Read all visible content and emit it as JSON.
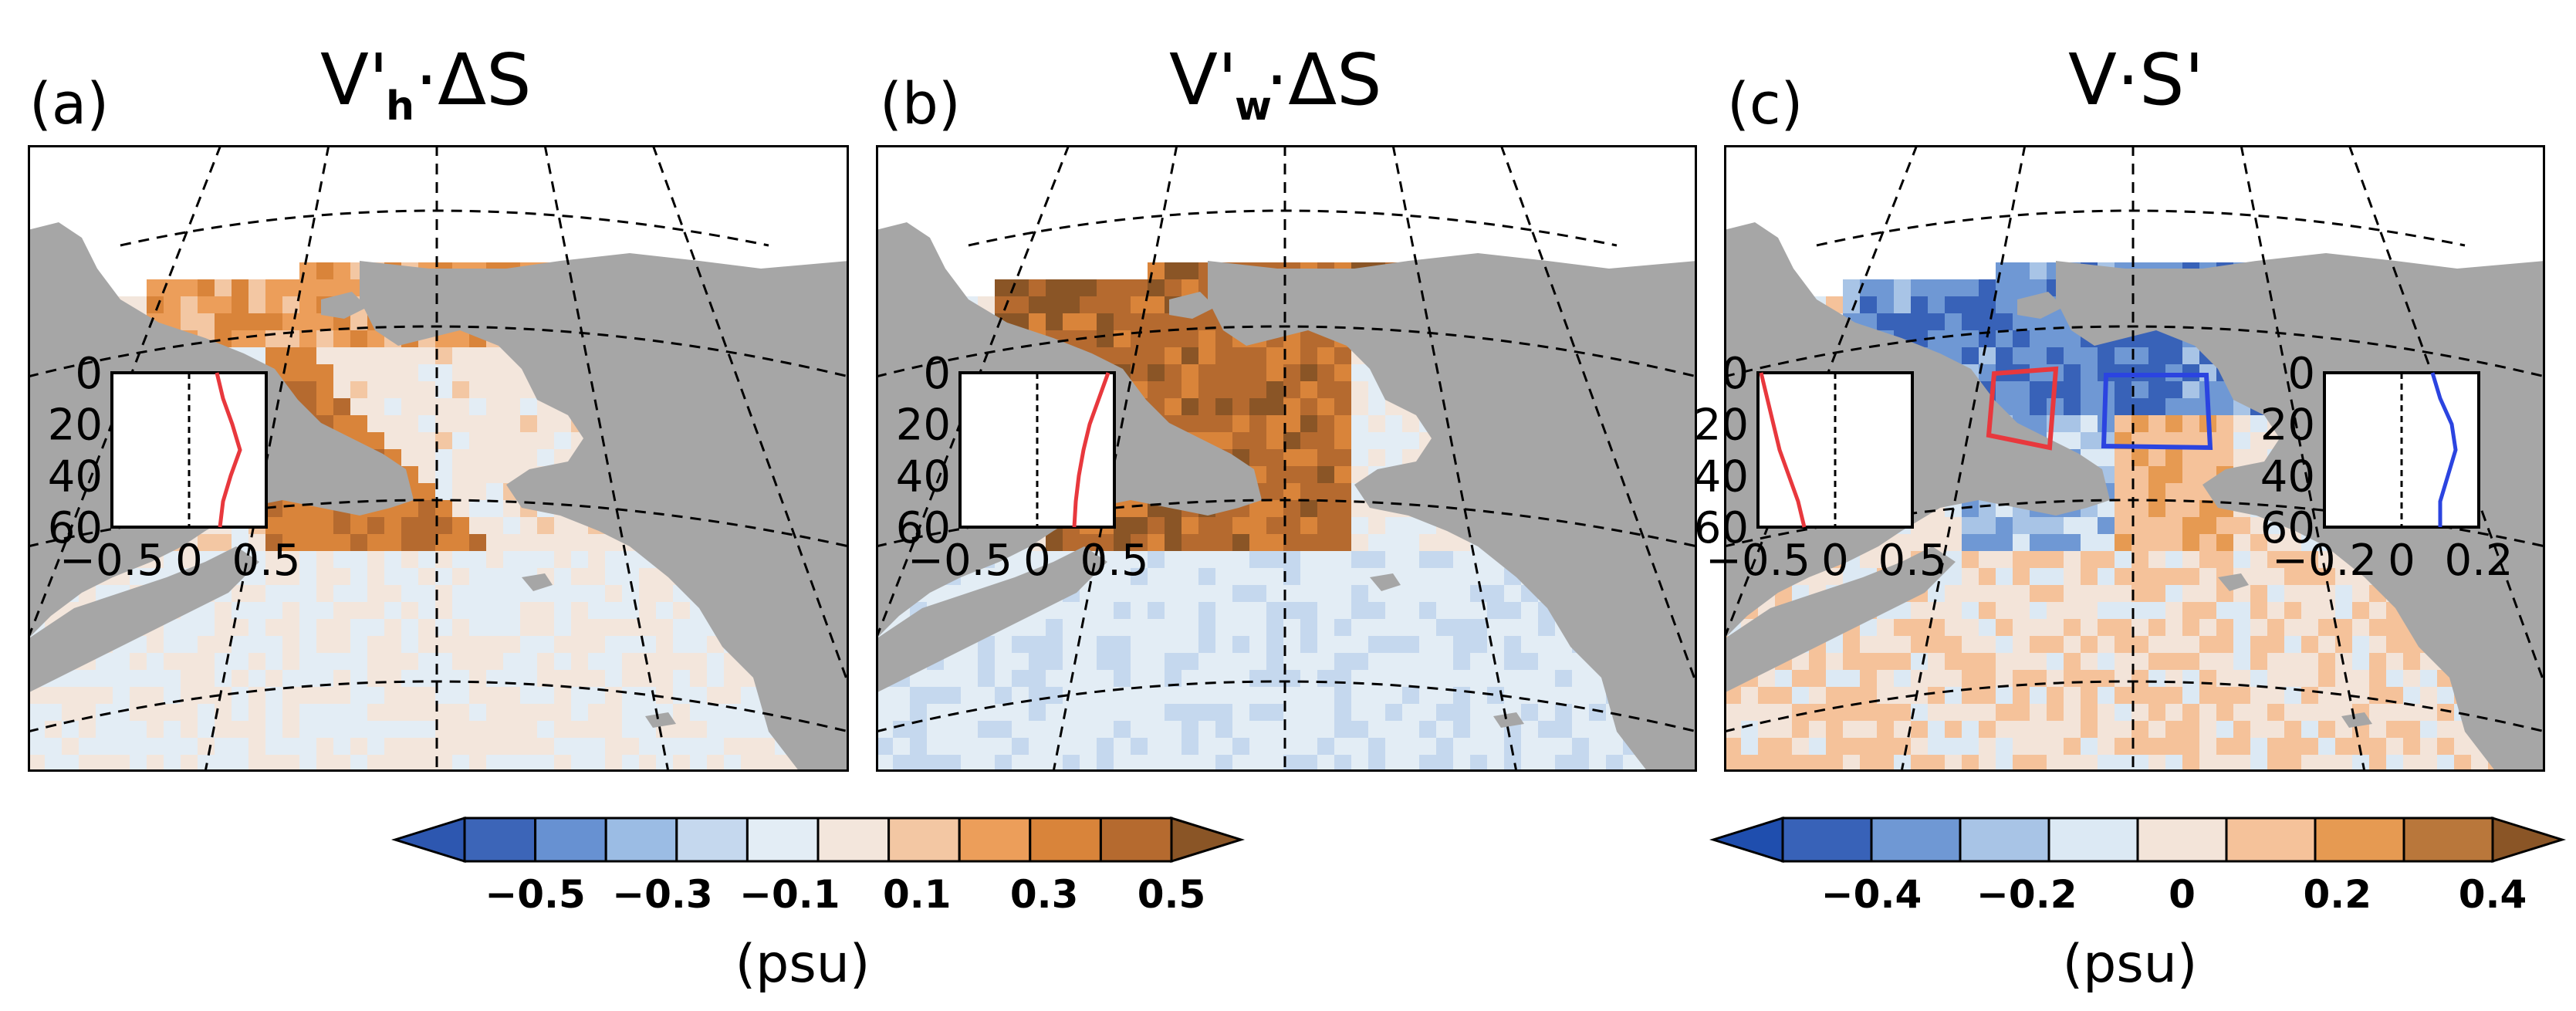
{
  "chart_data": [
    {
      "type": "heatmap",
      "panel_label": "(a)",
      "title": "V'h·ΔS",
      "title_main": "V'",
      "title_sub": "h",
      "title_tail": "·ΔS",
      "units": "(psu)",
      "colorbar_ticks": [
        "−0.5",
        "−0.3",
        "−0.1",
        "0.1",
        "0.3",
        "0.5"
      ],
      "inset": {
        "xticks": [
          "−0.5",
          "0",
          "0.5"
        ],
        "yticks": [
          "0",
          "20",
          "40",
          "60"
        ],
        "xlim": [
          -0.5,
          0.5
        ],
        "ylim": [
          0,
          60
        ],
        "profile": [
          {
            "d": 0,
            "v": 0.18
          },
          {
            "d": 10,
            "v": 0.22
          },
          {
            "d": 20,
            "v": 0.28
          },
          {
            "d": 30,
            "v": 0.33
          },
          {
            "d": 40,
            "v": 0.27
          },
          {
            "d": 50,
            "v": 0.22
          },
          {
            "d": 60,
            "v": 0.2
          }
        ],
        "color": "#e8383d"
      }
    },
    {
      "type": "heatmap",
      "panel_label": "(b)",
      "title": "V'w·ΔS",
      "title_main": "V'",
      "title_sub": "w",
      "title_tail": "·ΔS",
      "units": "(psu)",
      "colorbar_ticks": [
        "−0.5",
        "−0.3",
        "−0.1",
        "0.1",
        "0.3",
        "0.5"
      ],
      "inset": {
        "xticks": [
          "−0.5",
          "0",
          "0.5"
        ],
        "yticks": [
          "0",
          "20",
          "40",
          "60"
        ],
        "xlim": [
          -0.5,
          0.5
        ],
        "ylim": [
          0,
          60
        ],
        "profile": [
          {
            "d": 0,
            "v": 0.46
          },
          {
            "d": 10,
            "v": 0.4
          },
          {
            "d": 20,
            "v": 0.34
          },
          {
            "d": 30,
            "v": 0.3
          },
          {
            "d": 40,
            "v": 0.27
          },
          {
            "d": 50,
            "v": 0.25
          },
          {
            "d": 60,
            "v": 0.24
          }
        ],
        "color": "#e8383d"
      }
    },
    {
      "type": "heatmap",
      "panel_label": "(c)",
      "title": "V·S'",
      "title_main": "V·S'",
      "title_sub": "",
      "title_tail": "",
      "units": "(psu)",
      "colorbar_ticks": [
        "−0.4",
        "−0.2",
        "0",
        "0.2",
        "0.4"
      ],
      "insets": [
        {
          "xticks": [
            "−0.5",
            "0",
            "0.5"
          ],
          "yticks": [
            "0",
            "20",
            "40",
            "60"
          ],
          "xlim": [
            -0.5,
            0.5
          ],
          "ylim": [
            0,
            60
          ],
          "profile": [
            {
              "d": 0,
              "v": -0.48
            },
            {
              "d": 10,
              "v": -0.44
            },
            {
              "d": 20,
              "v": -0.4
            },
            {
              "d": 30,
              "v": -0.36
            },
            {
              "d": 40,
              "v": -0.3
            },
            {
              "d": 50,
              "v": -0.24
            },
            {
              "d": 60,
              "v": -0.2
            }
          ],
          "color": "#e8383d"
        },
        {
          "xticks": [
            "−0.2",
            "0",
            "0.2"
          ],
          "yticks": [
            "0",
            "20",
            "40",
            "60"
          ],
          "xlim": [
            -0.2,
            0.2
          ],
          "ylim": [
            0,
            60
          ],
          "profile": [
            {
              "d": 0,
              "v": 0.08
            },
            {
              "d": 10,
              "v": 0.1
            },
            {
              "d": 20,
              "v": 0.13
            },
            {
              "d": 30,
              "v": 0.14
            },
            {
              "d": 40,
              "v": 0.12
            },
            {
              "d": 50,
              "v": 0.1
            },
            {
              "d": 60,
              "v": 0.1
            }
          ],
          "color": "#2b44e0"
        }
      ]
    }
  ],
  "colors": {
    "land": "#a6a6a6",
    "frame": "#000000",
    "diverging_ab": [
      "#2d57b0",
      "#3c65b8",
      "#6791d2",
      "#9bbce4",
      "#c5d8ee",
      "#e3edf5",
      "#f3e6dc",
      "#f3c7a3",
      "#ec9e5a",
      "#d9843a",
      "#b56a2f",
      "#8a5526"
    ],
    "diverging_c": [
      "#1f4eae",
      "#3862b8",
      "#6f98d4",
      "#a8c4e6",
      "#dce9f4",
      "#f3e4d9",
      "#f5c29a",
      "#e69a52",
      "#b9773b",
      "#8a5526"
    ]
  }
}
